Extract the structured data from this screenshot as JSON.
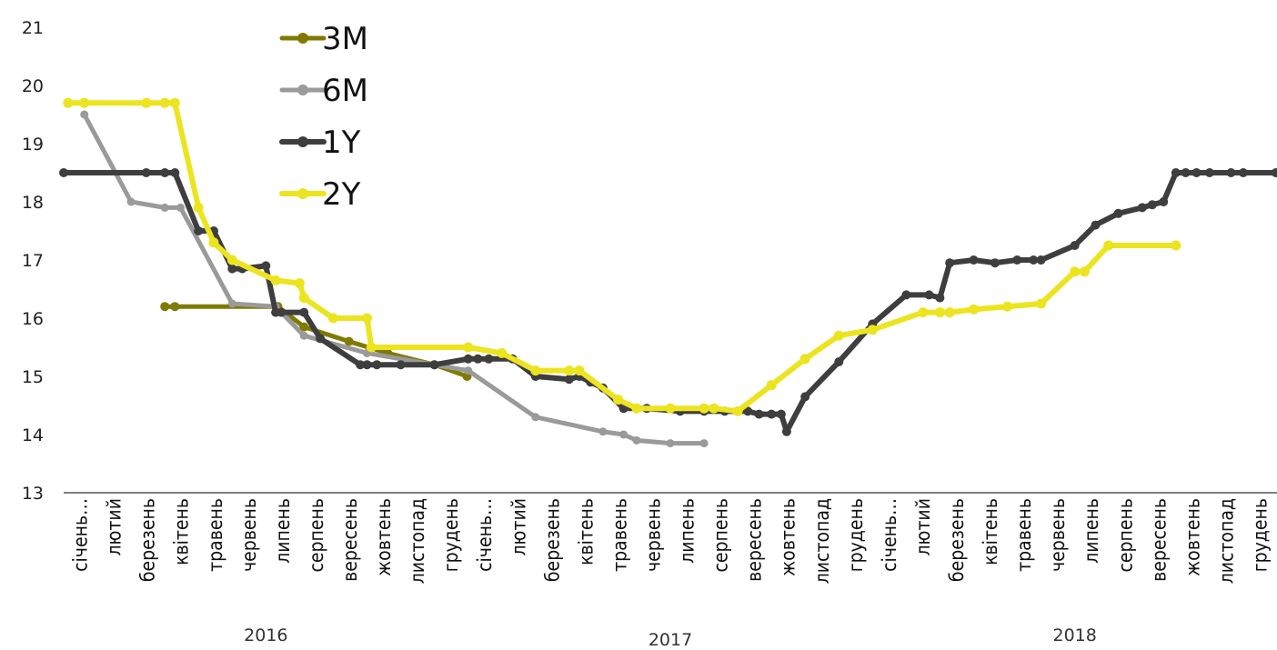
{
  "chart_data": {
    "type": "line",
    "title": "",
    "xlabel": "",
    "ylabel": "",
    "ylim": [
      13,
      21
    ],
    "yticks": [
      13,
      14,
      15,
      16,
      17,
      18,
      19,
      20,
      21
    ],
    "grid": false,
    "legend_position": "top-left",
    "month_labels": [
      "січень…",
      "лютий",
      "березень",
      "квітень",
      "травень",
      "червень",
      "липень",
      "серпень",
      "вересень",
      "жовтень",
      "листопад",
      "грудень",
      "січень…",
      "лютий",
      "березень",
      "квітень",
      "травень",
      "червень",
      "липень",
      "серпень",
      "вересень",
      "жовтень",
      "листопад",
      "грудень",
      "січень…",
      "лютий",
      "березень",
      "квітень",
      "травень",
      "червень",
      "липень",
      "серпень",
      "вересень",
      "жовтень",
      "листопад",
      "грудень"
    ],
    "year_labels": [
      "2016",
      "2017",
      "2018"
    ],
    "series": [
      {
        "name": "3M",
        "color": "#7f7a00",
        "x": [
          "2016-04-01",
          "2016-04-10",
          "2016-07-12",
          "2016-08-05",
          "2016-09-15",
          "2016-10-20",
          "2016-12-01",
          "2016-12-31"
        ],
        "y": [
          16.2,
          16.2,
          16.2,
          15.85,
          15.6,
          15.4,
          15.2,
          15.0
        ]
      },
      {
        "name": "6M",
        "color": "#9a9a9a",
        "x": [
          "2016-01-20",
          "2016-03-01",
          "2016-04-01",
          "2016-04-15",
          "2016-06-01",
          "2016-07-10",
          "2016-08-05",
          "2016-10-01",
          "2017-01-01",
          "2017-03-01",
          "2017-05-01",
          "2017-05-20",
          "2017-06-01",
          "2017-07-01",
          "2017-08-01"
        ],
        "y": [
          19.5,
          18.0,
          17.9,
          17.9,
          16.25,
          16.2,
          15.7,
          15.4,
          15.1,
          14.3,
          14.05,
          14.0,
          13.9,
          13.85,
          13.85
        ]
      },
      {
        "name": "1Y",
        "color": "#3e3e3e",
        "x": [
          "2016-01-01",
          "2016-03-15",
          "2016-04-01",
          "2016-04-10",
          "2016-05-01",
          "2016-05-15",
          "2016-06-01",
          "2016-06-10",
          "2016-07-01",
          "2016-07-10",
          "2016-07-15",
          "2016-08-05",
          "2016-08-20",
          "2016-09-25",
          "2016-10-01",
          "2016-10-10",
          "2016-11-01",
          "2016-12-01",
          "2017-01-01",
          "2017-01-10",
          "2017-01-20",
          "2017-02-10",
          "2017-03-01",
          "2017-04-01",
          "2017-04-10",
          "2017-04-20",
          "2017-05-01",
          "2017-05-20",
          "2017-06-10",
          "2017-07-10",
          "2017-08-01",
          "2017-08-20",
          "2017-09-10",
          "2017-09-20",
          "2017-10-01",
          "2017-10-10",
          "2017-10-15",
          "2017-11-01",
          "2017-12-01",
          "2018-01-01",
          "2018-02-01",
          "2018-02-20",
          "2018-03-01",
          "2018-03-10",
          "2018-04-01",
          "2018-04-20",
          "2018-05-10",
          "2018-05-25",
          "2018-06-01",
          "2018-07-01",
          "2018-07-20",
          "2018-08-10",
          "2018-09-01",
          "2018-09-10",
          "2018-09-20",
          "2018-10-01",
          "2018-10-10",
          "2018-10-20",
          "2018-11-01",
          "2018-11-20",
          "2018-12-01",
          "2018-12-31"
        ],
        "y": [
          18.5,
          18.5,
          18.5,
          18.5,
          17.5,
          17.5,
          16.85,
          16.85,
          16.9,
          16.1,
          16.1,
          16.1,
          15.65,
          15.2,
          15.2,
          15.2,
          15.2,
          15.2,
          15.3,
          15.3,
          15.3,
          15.3,
          15.0,
          14.95,
          15.0,
          14.9,
          14.8,
          14.45,
          14.45,
          14.4,
          14.4,
          14.4,
          14.4,
          14.35,
          14.35,
          14.35,
          14.05,
          14.65,
          15.25,
          15.9,
          16.4,
          16.4,
          16.35,
          16.95,
          17.0,
          16.95,
          17.0,
          17.0,
          17.0,
          17.25,
          17.6,
          17.8,
          17.9,
          17.95,
          18.0,
          18.5,
          18.5,
          18.5,
          18.5,
          18.5,
          18.5,
          18.5
        ]
      },
      {
        "name": "2Y",
        "color": "#ece41f",
        "x": [
          "2016-01-05",
          "2016-01-20",
          "2016-03-15",
          "2016-04-01",
          "2016-04-10",
          "2016-05-01",
          "2016-05-15",
          "2016-06-01",
          "2016-07-10",
          "2016-08-01",
          "2016-08-05",
          "2016-09-01",
          "2016-10-01",
          "2016-10-05",
          "2017-01-01",
          "2017-02-01",
          "2017-03-01",
          "2017-04-01",
          "2017-04-10",
          "2017-05-15",
          "2017-06-01",
          "2017-07-01",
          "2017-08-01",
          "2017-08-10",
          "2017-09-01",
          "2017-10-01",
          "2017-11-01",
          "2017-12-01",
          "2018-01-01",
          "2018-02-15",
          "2018-03-01",
          "2018-03-10",
          "2018-04-01",
          "2018-05-01",
          "2018-06-01",
          "2018-07-01",
          "2018-07-10",
          "2018-08-01",
          "2018-10-01"
        ],
        "y": [
          19.7,
          19.7,
          19.7,
          19.7,
          19.7,
          17.9,
          17.3,
          17.0,
          16.65,
          16.6,
          16.35,
          16.0,
          16.0,
          15.5,
          15.5,
          15.4,
          15.1,
          15.1,
          15.1,
          14.6,
          14.45,
          14.45,
          14.45,
          14.45,
          14.4,
          14.85,
          15.3,
          15.7,
          15.8,
          16.1,
          16.1,
          16.1,
          16.15,
          16.2,
          16.25,
          16.8,
          16.8,
          17.25,
          17.25
        ]
      }
    ]
  }
}
